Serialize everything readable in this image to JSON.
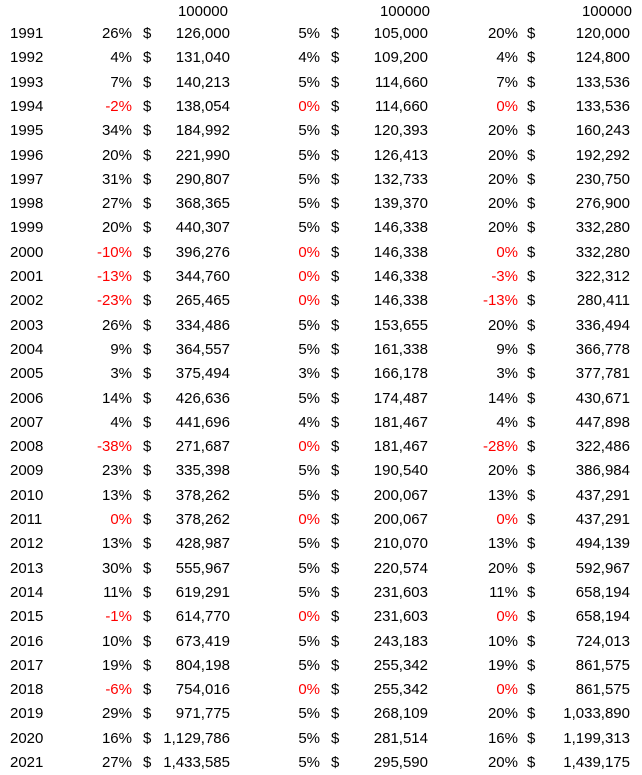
{
  "header": [
    "100000",
    "100000",
    "100000"
  ],
  "currency_symbol": "$",
  "negative_color": "#ff0000",
  "rows": [
    {
      "year": "1991",
      "pctA": "26%",
      "valA": "126,000",
      "pctB": "5%",
      "valB": "105,000",
      "pctC": "20%",
      "valC": "120,000"
    },
    {
      "year": "1992",
      "pctA": "4%",
      "valA": "131,040",
      "pctB": "4%",
      "valB": "109,200",
      "pctC": "4%",
      "valC": "124,800"
    },
    {
      "year": "1993",
      "pctA": "7%",
      "valA": "140,213",
      "pctB": "5%",
      "valB": "114,660",
      "pctC": "7%",
      "valC": "133,536"
    },
    {
      "year": "1994",
      "pctA": "-2%",
      "valA": "138,054",
      "pctB": "0%",
      "valB": "114,660",
      "pctC": "0%",
      "valC": "133,536"
    },
    {
      "year": "1995",
      "pctA": "34%",
      "valA": "184,992",
      "pctB": "5%",
      "valB": "120,393",
      "pctC": "20%",
      "valC": "160,243"
    },
    {
      "year": "1996",
      "pctA": "20%",
      "valA": "221,990",
      "pctB": "5%",
      "valB": "126,413",
      "pctC": "20%",
      "valC": "192,292"
    },
    {
      "year": "1997",
      "pctA": "31%",
      "valA": "290,807",
      "pctB": "5%",
      "valB": "132,733",
      "pctC": "20%",
      "valC": "230,750"
    },
    {
      "year": "1998",
      "pctA": "27%",
      "valA": "368,365",
      "pctB": "5%",
      "valB": "139,370",
      "pctC": "20%",
      "valC": "276,900"
    },
    {
      "year": "1999",
      "pctA": "20%",
      "valA": "440,307",
      "pctB": "5%",
      "valB": "146,338",
      "pctC": "20%",
      "valC": "332,280"
    },
    {
      "year": "2000",
      "pctA": "-10%",
      "valA": "396,276",
      "pctB": "0%",
      "valB": "146,338",
      "pctC": "0%",
      "valC": "332,280"
    },
    {
      "year": "2001",
      "pctA": "-13%",
      "valA": "344,760",
      "pctB": "0%",
      "valB": "146,338",
      "pctC": "-3%",
      "valC": "322,312"
    },
    {
      "year": "2002",
      "pctA": "-23%",
      "valA": "265,465",
      "pctB": "0%",
      "valB": "146,338",
      "pctC": "-13%",
      "valC": "280,411"
    },
    {
      "year": "2003",
      "pctA": "26%",
      "valA": "334,486",
      "pctB": "5%",
      "valB": "153,655",
      "pctC": "20%",
      "valC": "336,494"
    },
    {
      "year": "2004",
      "pctA": "9%",
      "valA": "364,557",
      "pctB": "5%",
      "valB": "161,338",
      "pctC": "9%",
      "valC": "366,778"
    },
    {
      "year": "2005",
      "pctA": "3%",
      "valA": "375,494",
      "pctB": "3%",
      "valB": "166,178",
      "pctC": "3%",
      "valC": "377,781"
    },
    {
      "year": "2006",
      "pctA": "14%",
      "valA": "426,636",
      "pctB": "5%",
      "valB": "174,487",
      "pctC": "14%",
      "valC": "430,671"
    },
    {
      "year": "2007",
      "pctA": "4%",
      "valA": "441,696",
      "pctB": "4%",
      "valB": "181,467",
      "pctC": "4%",
      "valC": "447,898"
    },
    {
      "year": "2008",
      "pctA": "-38%",
      "valA": "271,687",
      "pctB": "0%",
      "valB": "181,467",
      "pctC": "-28%",
      "valC": "322,486"
    },
    {
      "year": "2009",
      "pctA": "23%",
      "valA": "335,398",
      "pctB": "5%",
      "valB": "190,540",
      "pctC": "20%",
      "valC": "386,984"
    },
    {
      "year": "2010",
      "pctA": "13%",
      "valA": "378,262",
      "pctB": "5%",
      "valB": "200,067",
      "pctC": "13%",
      "valC": "437,291"
    },
    {
      "year": "2011",
      "pctA": "0%",
      "valA": "378,262",
      "pctB": "0%",
      "valB": "200,067",
      "pctC": "0%",
      "valC": "437,291"
    },
    {
      "year": "2012",
      "pctA": "13%",
      "valA": "428,987",
      "pctB": "5%",
      "valB": "210,070",
      "pctC": "13%",
      "valC": "494,139"
    },
    {
      "year": "2013",
      "pctA": "30%",
      "valA": "555,967",
      "pctB": "5%",
      "valB": "220,574",
      "pctC": "20%",
      "valC": "592,967"
    },
    {
      "year": "2014",
      "pctA": "11%",
      "valA": "619,291",
      "pctB": "5%",
      "valB": "231,603",
      "pctC": "11%",
      "valC": "658,194"
    },
    {
      "year": "2015",
      "pctA": "-1%",
      "valA": "614,770",
      "pctB": "0%",
      "valB": "231,603",
      "pctC": "0%",
      "valC": "658,194"
    },
    {
      "year": "2016",
      "pctA": "10%",
      "valA": "673,419",
      "pctB": "5%",
      "valB": "243,183",
      "pctC": "10%",
      "valC": "724,013"
    },
    {
      "year": "2017",
      "pctA": "19%",
      "valA": "804,198",
      "pctB": "5%",
      "valB": "255,342",
      "pctC": "19%",
      "valC": "861,575"
    },
    {
      "year": "2018",
      "pctA": "-6%",
      "valA": "754,016",
      "pctB": "0%",
      "valB": "255,342",
      "pctC": "0%",
      "valC": "861,575"
    },
    {
      "year": "2019",
      "pctA": "29%",
      "valA": "971,775",
      "pctB": "5%",
      "valB": "268,109",
      "pctC": "20%",
      "valC": "1,033,890"
    },
    {
      "year": "2020",
      "pctA": "16%",
      "valA": "1,129,786",
      "pctB": "5%",
      "valB": "281,514",
      "pctC": "16%",
      "valC": "1,199,313"
    },
    {
      "year": "2021",
      "pctA": "27%",
      "valA": "1,433,585",
      "pctB": "5%",
      "valB": "295,590",
      "pctC": "20%",
      "valC": "1,439,175"
    }
  ]
}
